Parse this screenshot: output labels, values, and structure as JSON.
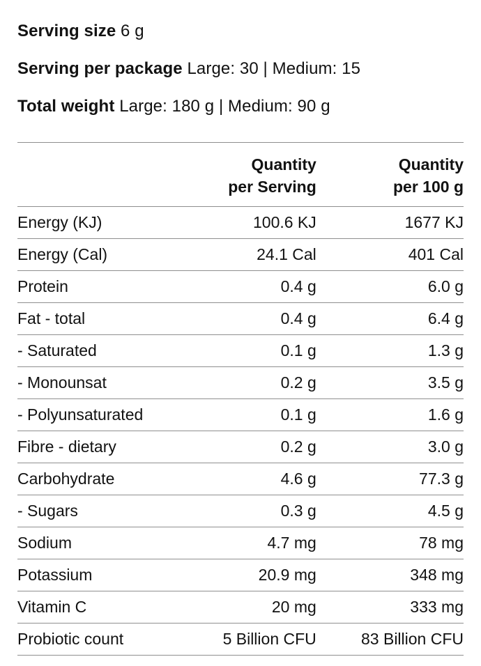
{
  "page": {
    "background": "#ffffff",
    "text_color": "#121212",
    "divider_color": "#8e8e8e"
  },
  "info": {
    "lines": [
      {
        "label": "Serving size",
        "value": "6 g"
      },
      {
        "label": "Serving per package",
        "value": "Large: 30 | Medium: 15"
      },
      {
        "label": "Total weight",
        "value": "Large: 180 g | Medium: 90 g"
      }
    ]
  },
  "table": {
    "header": {
      "nutrient": "",
      "per_serving_line1": "Quantity",
      "per_serving_line2": "per Serving",
      "per_100g_line1": "Quantity",
      "per_100g_line2": "per 100 g"
    },
    "rows": [
      {
        "nutrient": "Energy (KJ)",
        "per_serving": "100.6 KJ",
        "per_100g": "1677 KJ"
      },
      {
        "nutrient": "Energy (Cal)",
        "per_serving": "24.1 Cal",
        "per_100g": "401 Cal"
      },
      {
        "nutrient": "Protein",
        "per_serving": "0.4 g",
        "per_100g": "6.0 g"
      },
      {
        "nutrient": "Fat - total",
        "per_serving": "0.4 g",
        "per_100g": "6.4 g"
      },
      {
        "nutrient": "- Saturated",
        "per_serving": "0.1 g",
        "per_100g": "1.3 g"
      },
      {
        "nutrient": "- Monounsat",
        "per_serving": "0.2 g",
        "per_100g": "3.5 g"
      },
      {
        "nutrient": "- Polyunsaturated",
        "per_serving": "0.1 g",
        "per_100g": "1.6 g"
      },
      {
        "nutrient": "Fibre - dietary",
        "per_serving": "0.2 g",
        "per_100g": "3.0 g"
      },
      {
        "nutrient": "Carbohydrate",
        "per_serving": "4.6 g",
        "per_100g": "77.3 g"
      },
      {
        "nutrient": "- Sugars",
        "per_serving": "0.3 g",
        "per_100g": "4.5 g"
      },
      {
        "nutrient": "Sodium",
        "per_serving": "4.7 mg",
        "per_100g": "78 mg"
      },
      {
        "nutrient": "Potassium",
        "per_serving": "20.9 mg",
        "per_100g": "348 mg"
      },
      {
        "nutrient": "Vitamin C",
        "per_serving": "20 mg",
        "per_100g": "333 mg"
      },
      {
        "nutrient": "Probiotic count",
        "per_serving": "5 Billion CFU",
        "per_100g": "83 Billion CFU"
      }
    ]
  }
}
